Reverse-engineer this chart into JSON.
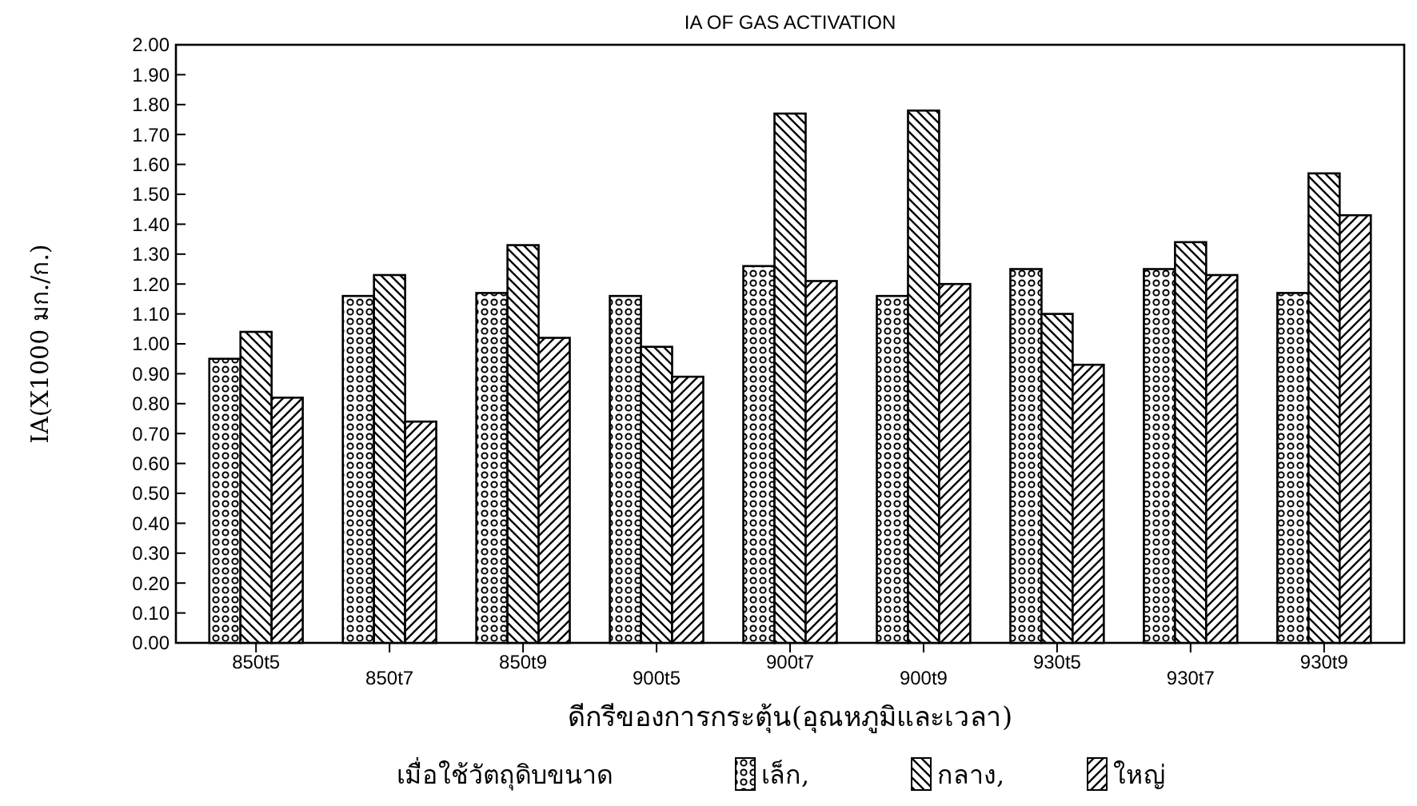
{
  "chart_data": {
    "type": "bar",
    "title": "IA OF GAS ACTIVATION",
    "xlabel": "ดีกรีของการกระตุ้น(อุณหภูมิและเวลา)",
    "ylabel": "IA(X1000 มก./ก.)",
    "legend_title": "เมื่อใช้วัตถุดิบขนาด",
    "legend": "bottom",
    "grid": false,
    "categories": [
      "850t5",
      "850t7",
      "850t9",
      "900t5",
      "900t7",
      "900t9",
      "930t5",
      "930t7",
      "930t9"
    ],
    "series": [
      {
        "name": "เล็ก,",
        "color": "#000000",
        "values": [
          0.95,
          1.16,
          1.17,
          1.16,
          1.26,
          1.16,
          1.25,
          1.25,
          1.17
        ]
      },
      {
        "name": "กลาง,",
        "color": "#000000",
        "values": [
          1.04,
          1.23,
          1.33,
          0.99,
          1.77,
          1.78,
          1.1,
          1.34,
          1.57
        ]
      },
      {
        "name": "ใหญ่",
        "color": "#000000",
        "values": [
          0.82,
          0.74,
          1.02,
          0.89,
          1.21,
          1.2,
          0.93,
          1.23,
          1.43
        ]
      }
    ],
    "ylim": [
      0,
      2
    ],
    "yticks": [
      {
        "value": 0,
        "label": "0.00"
      },
      {
        "value": 0.1,
        "label": "0.10"
      },
      {
        "value": 0.2,
        "label": "0.20"
      },
      {
        "value": 0.3,
        "label": "0.30"
      },
      {
        "value": 0.4,
        "label": "0.40"
      },
      {
        "value": 0.5,
        "label": "0.50"
      },
      {
        "value": 0.6,
        "label": "0.60"
      },
      {
        "value": 0.7,
        "label": "0.70"
      },
      {
        "value": 0.8,
        "label": "0.80"
      },
      {
        "value": 0.9,
        "label": "0.90"
      },
      {
        "value": 1,
        "label": "1.00"
      },
      {
        "value": 1.1,
        "label": "1.10"
      },
      {
        "value": 1.2,
        "label": "1.20"
      },
      {
        "value": 1.3,
        "label": "1.30"
      },
      {
        "value": 1.4,
        "label": "1.40"
      },
      {
        "value": 1.5,
        "label": "1.50"
      },
      {
        "value": 1.6,
        "label": "1.60"
      },
      {
        "value": 1.7,
        "label": "1.70"
      },
      {
        "value": 1.8,
        "label": "1.80"
      },
      {
        "value": 1.9,
        "label": "1.90"
      },
      {
        "value": 2,
        "label": "2.00"
      }
    ]
  }
}
